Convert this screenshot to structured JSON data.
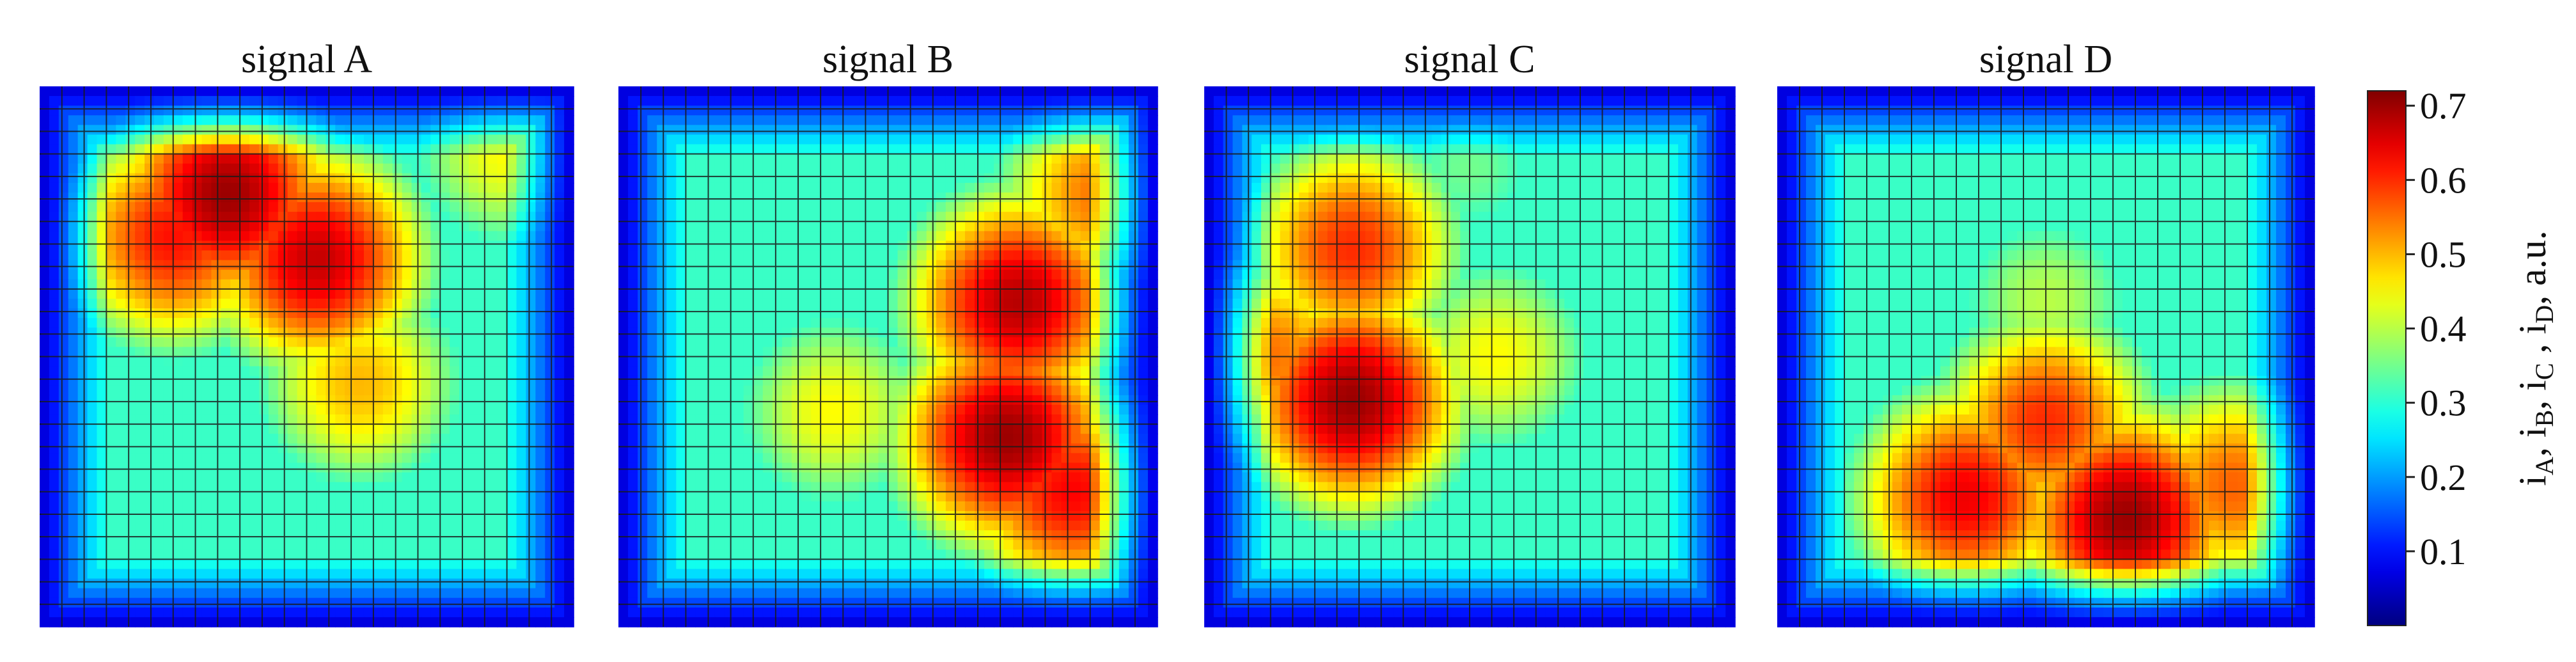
{
  "chart_data": {
    "type": "heatmap",
    "panels": [
      {
        "title": "signal A",
        "grid": [
          24,
          24
        ],
        "hotspots": [
          {
            "x": 0.35,
            "y": 0.2,
            "value": 0.7
          },
          {
            "x": 0.52,
            "y": 0.32,
            "value": 0.67
          },
          {
            "x": 0.25,
            "y": 0.28,
            "value": 0.62
          },
          {
            "x": 0.6,
            "y": 0.55,
            "value": 0.5
          },
          {
            "x": 0.88,
            "y": 0.12,
            "value": 0.45
          }
        ]
      },
      {
        "title": "signal B",
        "grid": [
          24,
          24
        ],
        "hotspots": [
          {
            "x": 0.72,
            "y": 0.65,
            "value": 0.7
          },
          {
            "x": 0.74,
            "y": 0.4,
            "value": 0.68
          },
          {
            "x": 0.84,
            "y": 0.75,
            "value": 0.63
          },
          {
            "x": 0.9,
            "y": 0.2,
            "value": 0.55
          },
          {
            "x": 0.4,
            "y": 0.6,
            "value": 0.45
          }
        ]
      },
      {
        "title": "signal C",
        "grid": [
          24,
          24
        ],
        "hotspots": [
          {
            "x": 0.28,
            "y": 0.58,
            "value": 0.7
          },
          {
            "x": 0.28,
            "y": 0.3,
            "value": 0.6
          },
          {
            "x": 0.12,
            "y": 0.5,
            "value": 0.55
          },
          {
            "x": 0.55,
            "y": 0.5,
            "value": 0.45
          },
          {
            "x": 0.5,
            "y": 0.15,
            "value": 0.35
          }
        ]
      },
      {
        "title": "signal D",
        "grid": [
          24,
          24
        ],
        "hotspots": [
          {
            "x": 0.65,
            "y": 0.8,
            "value": 0.7
          },
          {
            "x": 0.35,
            "y": 0.76,
            "value": 0.64
          },
          {
            "x": 0.85,
            "y": 0.74,
            "value": 0.56
          },
          {
            "x": 0.5,
            "y": 0.62,
            "value": 0.6
          },
          {
            "x": 0.5,
            "y": 0.4,
            "value": 0.4
          }
        ]
      }
    ],
    "colorbar": {
      "ticks": [
        "0.1",
        "0.2",
        "0.3",
        "0.4",
        "0.5",
        "0.6",
        "0.7"
      ],
      "range": [
        0.0,
        0.72
      ],
      "label_parts": [
        {
          "t": "i"
        },
        {
          "t": "A",
          "sub": true
        },
        {
          "t": ", i"
        },
        {
          "t": "B",
          "sub": true
        },
        {
          "t": ", i"
        },
        {
          "t": "C",
          "sub": true
        },
        {
          "t": " , i"
        },
        {
          "t": "D",
          "sub": true
        },
        {
          "t": ", a.u."
        }
      ],
      "colormap": "jet"
    },
    "grid_lines": true
  }
}
